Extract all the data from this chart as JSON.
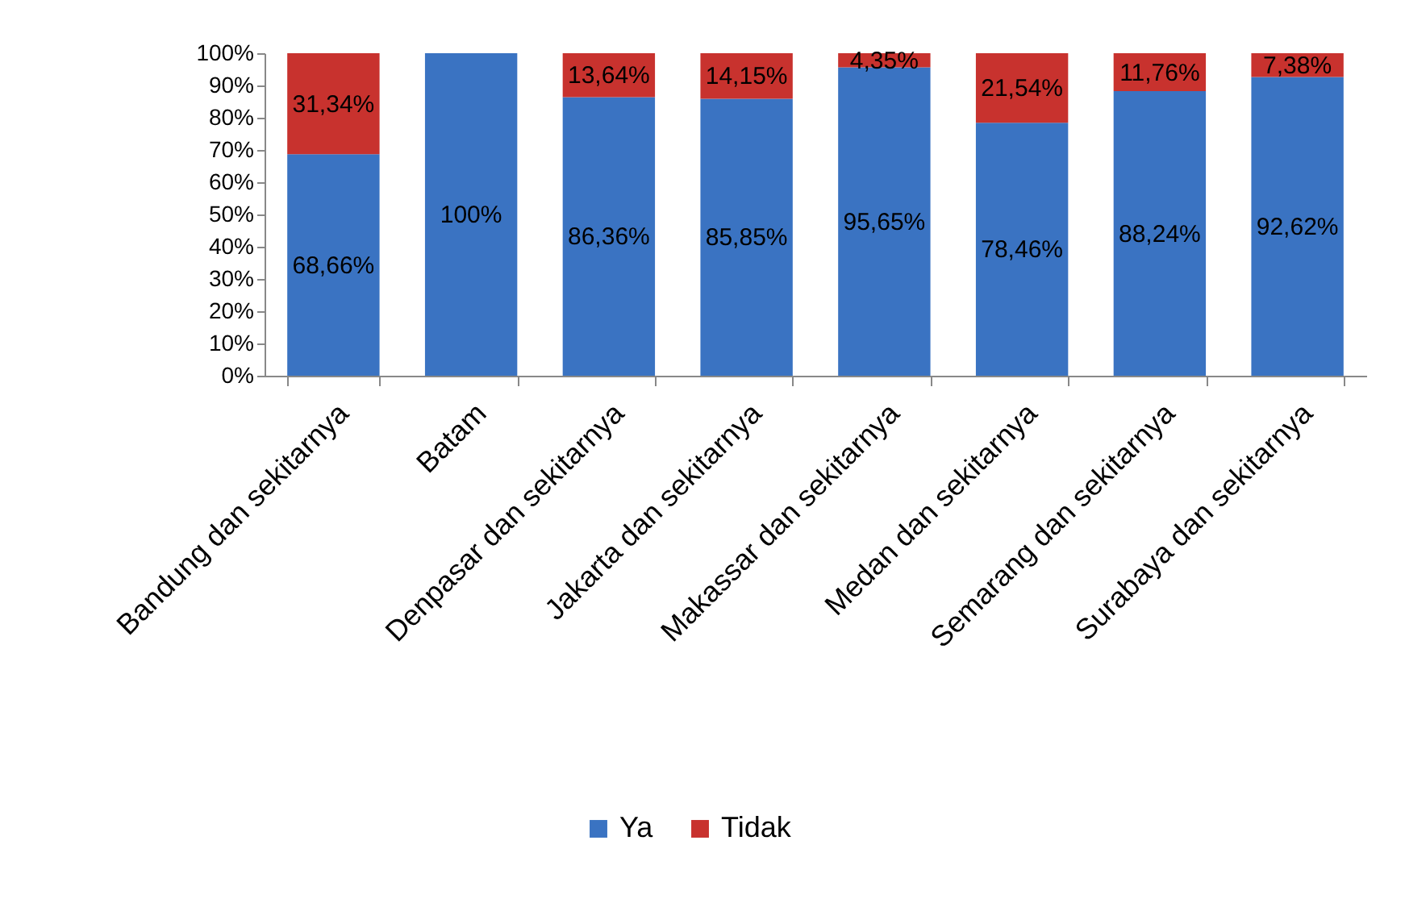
{
  "chart_data": {
    "type": "bar",
    "stacked": true,
    "categories": [
      "Bandung dan sekitarnya",
      "Batam",
      "Denpasar dan sekitarnya",
      "Jakarta dan sekitarnya",
      "Makassar dan sekitarnya",
      "Medan dan sekitarnya",
      "Semarang dan sekitarnya",
      "Surabaya dan sekitarnya"
    ],
    "series": [
      {
        "name": "Ya",
        "color": "#3a73c2",
        "values": [
          68.66,
          100,
          86.36,
          85.85,
          95.65,
          78.46,
          88.24,
          92.62
        ],
        "value_labels": [
          "68,66%",
          "100%",
          "86,36%",
          "85,85%",
          "95,65%",
          "78,46%",
          "88,24%",
          "92,62%"
        ]
      },
      {
        "name": "Tidak",
        "color": "#c8322e",
        "values": [
          31.34,
          0,
          13.64,
          14.15,
          4.35,
          21.54,
          11.76,
          7.38
        ],
        "value_labels": [
          "31,34%",
          null,
          "13,64%",
          "14,15%",
          "4,35%",
          "21,54%",
          "11,76%",
          "7,38%"
        ]
      }
    ],
    "ylim": [
      0,
      100
    ],
    "yticks": [
      {
        "value": 0,
        "label": "0%"
      },
      {
        "value": 10,
        "label": "10%"
      },
      {
        "value": 20,
        "label": "20%"
      },
      {
        "value": 30,
        "label": "30%"
      },
      {
        "value": 40,
        "label": "40%"
      },
      {
        "value": 50,
        "label": "50%"
      },
      {
        "value": 60,
        "label": "60%"
      },
      {
        "value": 70,
        "label": "70%"
      },
      {
        "value": 80,
        "label": "80%"
      },
      {
        "value": 90,
        "label": "90%"
      },
      {
        "value": 100,
        "label": "100%"
      }
    ],
    "legend": "bottom"
  }
}
